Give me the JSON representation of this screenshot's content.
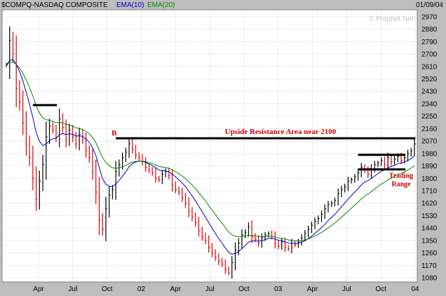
{
  "header": {
    "symbol": "$COMPQ-NASDAQ COMPOSITE",
    "ema_short": "EMA(10)",
    "ema_long": "EMA(20)",
    "date": "01/09/04",
    "watermark": "© Prophet.Net"
  },
  "colors": {
    "background": "#bdbdbd",
    "plot_bg": "#ffffff",
    "grid": "#c8c8c8",
    "up_bar": "#000000",
    "down_bar": "#dd0000",
    "ema_short": "#0000cc",
    "ema_long": "#008800",
    "annotation": "#cc0000",
    "level_line": "#000000"
  },
  "chart_data": {
    "type": "line",
    "ohlc_style": "weekly price bars",
    "x_tick_labels": [
      "Apr",
      "Jul",
      "Oct",
      "02",
      "Apr",
      "Jul",
      "Oct",
      "03",
      "Apr",
      "Jul",
      "Oct",
      "04"
    ],
    "y_tick_labels": [
      "1080",
      "1170",
      "1260",
      "1350",
      "1440",
      "1530",
      "1620",
      "1710",
      "1800",
      "1890",
      "1980",
      "2070",
      "2160",
      "2250",
      "2340",
      "2430",
      "2520",
      "2610",
      "2700",
      "2790",
      "2880",
      "2970"
    ],
    "ylim": [
      1050,
      3020
    ],
    "grid": true,
    "series": [
      {
        "name": "EMA(10)",
        "role": "ema_short"
      },
      {
        "name": "EMA(20)",
        "role": "ema_long"
      }
    ],
    "x_weeks": 158,
    "close": [
      2620,
      2800,
      2700,
      2450,
      2350,
      2200,
      2050,
      1950,
      1800,
      1650,
      1780,
      1900,
      2100,
      2180,
      2150,
      2100,
      2230,
      2170,
      2080,
      2150,
      2100,
      2050,
      2120,
      2080,
      2000,
      1950,
      1850,
      1700,
      1500,
      1430,
      1580,
      1680,
      1720,
      1850,
      1900,
      1950,
      1990,
      2050,
      2010,
      1970,
      1950,
      1920,
      1880,
      1860,
      1840,
      1800,
      1790,
      1830,
      1850,
      1820,
      1750,
      1720,
      1700,
      1660,
      1620,
      1560,
      1520,
      1480,
      1420,
      1380,
      1350,
      1300,
      1260,
      1230,
      1200,
      1180,
      1140,
      1120,
      1190,
      1280,
      1330,
      1390,
      1410,
      1450,
      1380,
      1360,
      1330,
      1370,
      1390,
      1400,
      1380,
      1330,
      1310,
      1340,
      1300,
      1290,
      1330,
      1320,
      1340,
      1370,
      1400,
      1430,
      1460,
      1490,
      1510,
      1540,
      1580,
      1610,
      1620,
      1640,
      1690,
      1720,
      1740,
      1780,
      1790,
      1810,
      1840,
      1880,
      1860,
      1830,
      1870,
      1900,
      1910,
      1930,
      1900,
      1950,
      1920,
      1940,
      1960,
      1930,
      1950,
      1980,
      2000,
      2050
    ],
    "levels": [
      {
        "label": "",
        "price": 2330,
        "from_week": 8,
        "to_week": 14
      },
      {
        "label": "B",
        "price": 2090,
        "from_week": 33,
        "to_week": 122
      },
      {
        "label": "",
        "price": 1970,
        "from_week": 106,
        "to_week": 119
      },
      {
        "label": "",
        "price": 1865,
        "from_week": 106,
        "to_week": 119
      }
    ],
    "annotations": [
      {
        "text": "Upside Resistance Area near 2100"
      },
      {
        "text": "Trading"
      },
      {
        "text": "Range"
      }
    ]
  }
}
